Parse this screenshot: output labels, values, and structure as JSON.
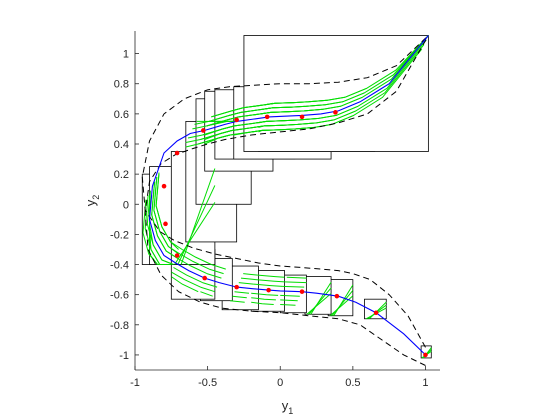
{
  "chart_data": {
    "type": "line",
    "xlabel": "y",
    "xlabel_sub": "1",
    "ylabel": "y",
    "ylabel_sub": "2",
    "xlim": [
      -1,
      1.1
    ],
    "ylim": [
      -1.1,
      1.15
    ],
    "xticks": [
      -1,
      -0.5,
      0,
      0.5,
      1
    ],
    "xtick_labels": [
      "-1",
      "-0.5",
      "0",
      "0.5",
      "1"
    ],
    "yticks": [
      -1,
      -0.8,
      -0.6,
      -0.4,
      -0.2,
      0,
      0.2,
      0.4,
      0.6,
      0.8,
      1
    ],
    "ytick_labels": [
      "-1",
      "-0.8",
      "-0.6",
      "-0.4",
      "-0.2",
      "0",
      "0.2",
      "0.4",
      "0.6",
      "0.8",
      "1"
    ],
    "grid": false,
    "colors": {
      "trajectory": "#0000ff",
      "points": "#ff0000",
      "flow_curves": "#00dd00",
      "boxes": "#000000",
      "bounds": "#000000",
      "axes": "#262626"
    },
    "trajectory": {
      "x": [
        1.0,
        0.85,
        0.66,
        0.52,
        0.4,
        0.25,
        0.15,
        0.0,
        -0.08,
        -0.2,
        -0.3,
        -0.42,
        -0.52,
        -0.63,
        -0.72,
        -0.8,
        -0.86,
        -0.9,
        -0.88,
        -0.8,
        -0.71,
        -0.62,
        -0.52,
        -0.38,
        -0.3,
        -0.15,
        -0.08,
        0.05,
        0.15,
        0.28,
        0.4,
        0.55,
        0.75,
        1.02
      ],
      "y": [
        -1.0,
        -0.86,
        -0.72,
        -0.65,
        -0.61,
        -0.59,
        -0.58,
        -0.575,
        -0.57,
        -0.56,
        -0.55,
        -0.52,
        -0.49,
        -0.44,
        -0.39,
        -0.34,
        -0.24,
        -0.1,
        0.12,
        0.34,
        0.42,
        0.47,
        0.49,
        0.53,
        0.55,
        0.57,
        0.58,
        0.585,
        0.59,
        0.6,
        0.62,
        0.68,
        0.8,
        1.12
      ]
    },
    "points": {
      "x": [
        1.0,
        0.66,
        0.39,
        0.15,
        -0.08,
        -0.3,
        -0.52,
        -0.71,
        -0.79,
        -0.8,
        -0.71,
        -0.53,
        -0.3,
        -0.09,
        0.15,
        0.38
      ],
      "y": [
        -1.0,
        -0.72,
        -0.61,
        -0.58,
        -0.57,
        -0.55,
        -0.49,
        -0.34,
        -0.13,
        0.12,
        0.34,
        0.49,
        0.56,
        0.58,
        0.58,
        0.61
      ]
    },
    "upper_bound": {
      "x": [
        1.0,
        0.88,
        0.75,
        0.62,
        0.5,
        0.4,
        0.28,
        0.15,
        0.0,
        -0.15,
        -0.3,
        -0.45,
        -0.6,
        -0.73,
        -0.83,
        -0.93,
        -0.95,
        -0.9,
        -0.8,
        -0.66,
        -0.5,
        -0.35,
        -0.18,
        0.0,
        0.2,
        0.4,
        0.6,
        0.8,
        1.02
      ],
      "y": [
        -0.95,
        -0.74,
        -0.6,
        -0.5,
        -0.46,
        -0.44,
        -0.43,
        -0.42,
        -0.41,
        -0.39,
        -0.36,
        -0.33,
        -0.29,
        -0.24,
        -0.18,
        -0.04,
        0.18,
        0.42,
        0.6,
        0.7,
        0.76,
        0.78,
        0.79,
        0.8,
        0.8,
        0.81,
        0.84,
        0.92,
        1.12
      ]
    },
    "lower_bound": {
      "x": [
        1.0,
        0.85,
        0.7,
        0.55,
        0.4,
        0.2,
        0.0,
        -0.2,
        -0.4,
        -0.55,
        -0.7,
        -0.82,
        -0.91,
        -0.93,
        -0.9,
        -0.82,
        -0.72,
        -0.6,
        -0.5,
        -0.38,
        -0.2,
        0.0,
        0.2,
        0.4,
        0.6,
        0.8,
        1.02
      ],
      "y": [
        -1.07,
        -1.0,
        -0.9,
        -0.8,
        -0.76,
        -0.74,
        -0.72,
        -0.71,
        -0.69,
        -0.65,
        -0.58,
        -0.47,
        -0.3,
        -0.05,
        0.15,
        0.27,
        0.33,
        0.37,
        0.4,
        0.43,
        0.46,
        0.48,
        0.5,
        0.54,
        0.6,
        0.75,
        1.12
      ]
    },
    "boxes": [
      {
        "x": [
          0.97,
          1.04
        ],
        "y": [
          -1.02,
          -0.94
        ]
      },
      {
        "x": [
          0.58,
          0.73
        ],
        "y": [
          -0.76,
          -0.63
        ]
      },
      {
        "x": [
          0.33,
          0.5
        ],
        "y": [
          -0.74,
          -0.5
        ]
      },
      {
        "x": [
          0.17,
          0.35
        ],
        "y": [
          -0.73,
          -0.48
        ]
      },
      {
        "x": [
          0.0,
          0.18
        ],
        "y": [
          -0.72,
          -0.47
        ]
      },
      {
        "x": [
          -0.2,
          0.03
        ],
        "y": [
          -0.71,
          -0.44
        ]
      },
      {
        "x": [
          -0.4,
          -0.15
        ],
        "y": [
          -0.7,
          -0.41
        ]
      },
      {
        "x": [
          -0.55,
          -0.33
        ],
        "y": [
          -0.64,
          -0.36
        ]
      },
      {
        "x": [
          -0.75,
          -0.45
        ],
        "y": [
          -0.63,
          -0.3
        ]
      },
      {
        "x": [
          -0.95,
          -0.7
        ],
        "y": [
          -0.4,
          0.2
        ]
      },
      {
        "x": [
          -0.9,
          -0.55
        ],
        "y": [
          -0.4,
          0.25
        ]
      },
      {
        "x": [
          -0.75,
          -0.45
        ],
        "y": [
          -0.4,
          0.35
        ]
      },
      {
        "x": [
          -0.65,
          -0.3
        ],
        "y": [
          -0.25,
          0.55
        ]
      },
      {
        "x": [
          -0.58,
          -0.2
        ],
        "y": [
          0.0,
          0.7
        ]
      },
      {
        "x": [
          -0.52,
          -0.05
        ],
        "y": [
          0.22,
          0.75
        ]
      },
      {
        "x": [
          -0.45,
          0.1
        ],
        "y": [
          0.3,
          0.76
        ]
      },
      {
        "x": [
          -0.32,
          0.35
        ],
        "y": [
          0.3,
          0.78
        ]
      },
      {
        "x": [
          -0.15,
          0.65
        ],
        "y": [
          0.35,
          0.82
        ]
      },
      {
        "x": [
          -0.25,
          1.02
        ],
        "y": [
          0.35,
          1.12
        ]
      }
    ]
  }
}
